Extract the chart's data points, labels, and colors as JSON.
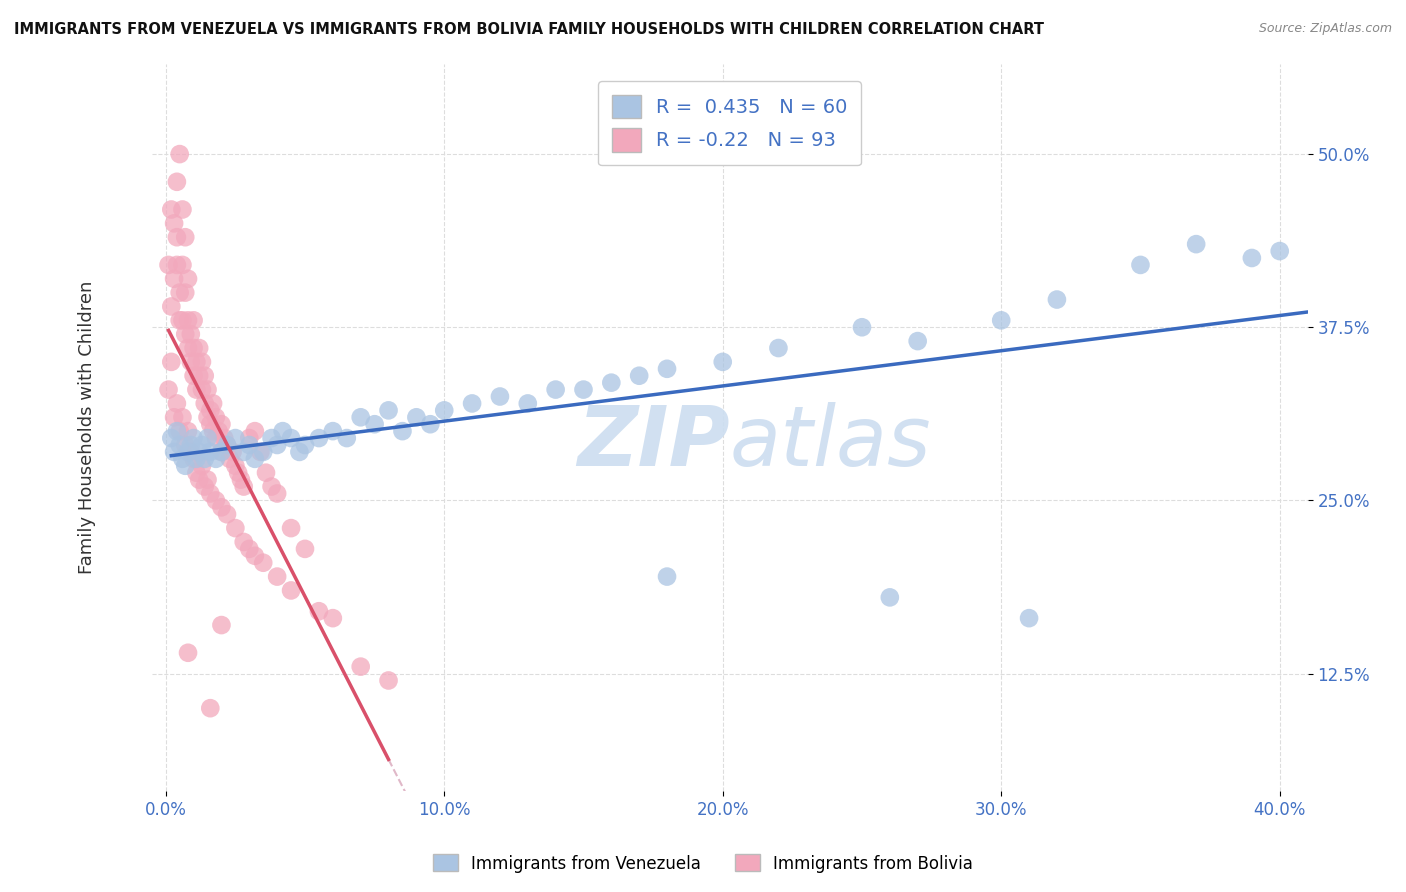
{
  "title": "IMMIGRANTS FROM VENEZUELA VS IMMIGRANTS FROM BOLIVIA FAMILY HOUSEHOLDS WITH CHILDREN CORRELATION CHART",
  "source": "Source: ZipAtlas.com",
  "ylabel": "Family Households with Children",
  "R_venezuela": 0.435,
  "N_venezuela": 60,
  "R_bolivia": -0.22,
  "N_bolivia": 93,
  "color_venezuela": "#aac4e2",
  "color_bolivia": "#f2a8bc",
  "line_color_venezuela": "#3a6abf",
  "line_color_bolivia": "#d9506a",
  "dashed_line_color": "#e0b8c8",
  "watermark_color": "#ccddf0",
  "legend1_label": "Immigrants from Venezuela",
  "legend2_label": "Immigrants from Bolivia",
  "background_color": "#ffffff",
  "xlim": [
    -0.005,
    0.41
  ],
  "ylim": [
    0.04,
    0.565
  ],
  "xticks": [
    0.0,
    0.1,
    0.2,
    0.3,
    0.4
  ],
  "yticks": [
    0.125,
    0.25,
    0.375,
    0.5
  ],
  "xticklabels": [
    "0.0%",
    "10.0%",
    "20.0%",
    "30.0%",
    "40.0%"
  ],
  "yticklabels": [
    "12.5%",
    "25.0%",
    "37.5%",
    "50.0%"
  ],
  "venezuela_x": [
    0.002,
    0.003,
    0.004,
    0.005,
    0.006,
    0.007,
    0.008,
    0.009,
    0.01,
    0.011,
    0.012,
    0.013,
    0.014,
    0.015,
    0.016,
    0.018,
    0.02,
    0.022,
    0.025,
    0.028,
    0.03,
    0.032,
    0.035,
    0.038,
    0.04,
    0.042,
    0.045,
    0.048,
    0.05,
    0.055,
    0.06,
    0.065,
    0.07,
    0.075,
    0.08,
    0.085,
    0.09,
    0.095,
    0.1,
    0.11,
    0.12,
    0.13,
    0.14,
    0.15,
    0.16,
    0.17,
    0.18,
    0.2,
    0.22,
    0.25,
    0.27,
    0.3,
    0.32,
    0.35,
    0.37,
    0.39,
    0.4,
    0.31,
    0.26,
    0.18
  ],
  "venezuela_y": [
    0.295,
    0.285,
    0.3,
    0.29,
    0.28,
    0.275,
    0.285,
    0.29,
    0.295,
    0.28,
    0.285,
    0.29,
    0.28,
    0.295,
    0.285,
    0.28,
    0.285,
    0.29,
    0.295,
    0.285,
    0.29,
    0.28,
    0.285,
    0.295,
    0.29,
    0.3,
    0.295,
    0.285,
    0.29,
    0.295,
    0.3,
    0.295,
    0.31,
    0.305,
    0.315,
    0.3,
    0.31,
    0.305,
    0.315,
    0.32,
    0.325,
    0.32,
    0.33,
    0.33,
    0.335,
    0.34,
    0.345,
    0.35,
    0.36,
    0.375,
    0.365,
    0.38,
    0.395,
    0.42,
    0.435,
    0.425,
    0.43,
    0.165,
    0.18,
    0.195
  ],
  "bolivia_x": [
    0.001,
    0.002,
    0.002,
    0.003,
    0.003,
    0.004,
    0.004,
    0.004,
    0.005,
    0.005,
    0.005,
    0.006,
    0.006,
    0.006,
    0.007,
    0.007,
    0.007,
    0.008,
    0.008,
    0.008,
    0.009,
    0.009,
    0.01,
    0.01,
    0.01,
    0.011,
    0.011,
    0.012,
    0.012,
    0.013,
    0.013,
    0.014,
    0.014,
    0.015,
    0.015,
    0.016,
    0.016,
    0.017,
    0.017,
    0.018,
    0.018,
    0.019,
    0.02,
    0.02,
    0.021,
    0.022,
    0.023,
    0.024,
    0.025,
    0.026,
    0.027,
    0.028,
    0.03,
    0.032,
    0.034,
    0.036,
    0.038,
    0.04,
    0.045,
    0.05,
    0.001,
    0.002,
    0.003,
    0.004,
    0.005,
    0.006,
    0.007,
    0.008,
    0.009,
    0.01,
    0.011,
    0.012,
    0.013,
    0.014,
    0.015,
    0.016,
    0.018,
    0.02,
    0.022,
    0.025,
    0.028,
    0.03,
    0.032,
    0.035,
    0.04,
    0.045,
    0.055,
    0.06,
    0.07,
    0.08,
    0.02,
    0.008,
    0.016
  ],
  "bolivia_y": [
    0.42,
    0.46,
    0.39,
    0.45,
    0.41,
    0.48,
    0.44,
    0.42,
    0.4,
    0.38,
    0.5,
    0.42,
    0.46,
    0.38,
    0.44,
    0.4,
    0.37,
    0.38,
    0.36,
    0.41,
    0.35,
    0.37,
    0.36,
    0.34,
    0.38,
    0.35,
    0.33,
    0.34,
    0.36,
    0.33,
    0.35,
    0.32,
    0.34,
    0.31,
    0.33,
    0.315,
    0.305,
    0.32,
    0.3,
    0.31,
    0.295,
    0.3,
    0.305,
    0.285,
    0.295,
    0.29,
    0.28,
    0.285,
    0.275,
    0.27,
    0.265,
    0.26,
    0.295,
    0.3,
    0.285,
    0.27,
    0.26,
    0.255,
    0.23,
    0.215,
    0.33,
    0.35,
    0.31,
    0.32,
    0.3,
    0.31,
    0.29,
    0.3,
    0.285,
    0.28,
    0.27,
    0.265,
    0.275,
    0.26,
    0.265,
    0.255,
    0.25,
    0.245,
    0.24,
    0.23,
    0.22,
    0.215,
    0.21,
    0.205,
    0.195,
    0.185,
    0.17,
    0.165,
    0.13,
    0.12,
    0.16,
    0.14,
    0.1
  ]
}
